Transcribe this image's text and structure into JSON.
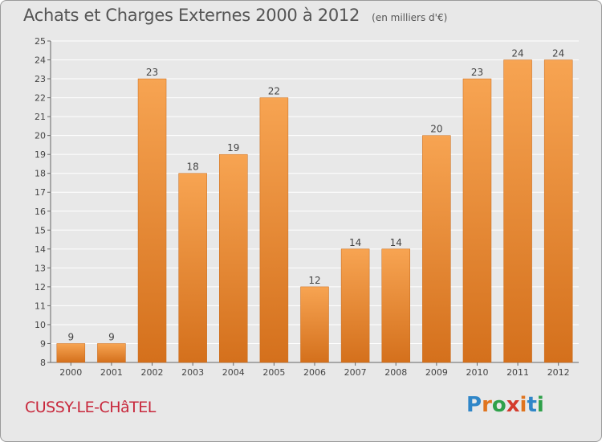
{
  "chart_data": {
    "type": "bar",
    "title": "Achats et Charges Externes 2000 à 2012",
    "subtitle": "(en milliers d'€)",
    "categories": [
      "2000",
      "2001",
      "2002",
      "2003",
      "2004",
      "2005",
      "2006",
      "2007",
      "2008",
      "2009",
      "2010",
      "2011",
      "2012"
    ],
    "values": [
      9,
      9,
      23,
      18,
      19,
      22,
      12,
      14,
      14,
      20,
      23,
      24,
      24
    ],
    "ylim": [
      8,
      25
    ],
    "yticks": [
      8,
      9,
      10,
      11,
      12,
      13,
      14,
      15,
      16,
      17,
      18,
      19,
      20,
      21,
      22,
      23,
      24,
      25
    ],
    "grid": true,
    "colors": {
      "bar_top": "#f7a452",
      "bar_bottom": "#d4701c",
      "bar_edge": "#c86a1a"
    }
  },
  "footer": {
    "commune": "CUSSY-LE-CHâTEL",
    "brand": "Proxiti",
    "brand_colors": [
      "#2f86c8",
      "#e0741e",
      "#2fa14a",
      "#d43b2c",
      "#e0741e",
      "#2f86c8",
      "#2fa14a"
    ]
  }
}
